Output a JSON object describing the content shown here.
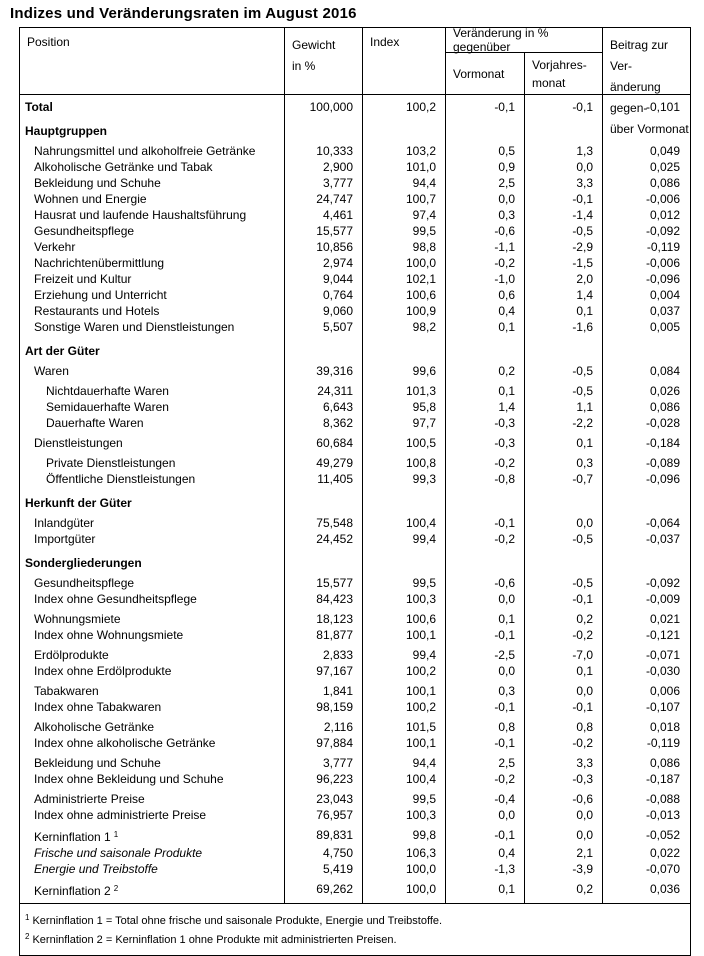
{
  "title": "Indizes und Veränderungsraten im August 2016",
  "colors": {
    "text": "#000000",
    "border": "#000000",
    "background": "#ffffff"
  },
  "table": {
    "columns": {
      "position": "Position",
      "gewicht": [
        "Gewicht",
        "in %"
      ],
      "index": "Index",
      "veraenderung_group": "Veränderung in % gegenüber",
      "vormonat": "Vormonat",
      "vorjahresmonat": [
        "Vorjahres-",
        "monat"
      ],
      "beitrag": [
        "Beitrag zur Ver-",
        "änderung gegen-",
        "über Vormonat"
      ]
    },
    "rows": [
      {
        "type": "data",
        "label": "Total",
        "indent": 0,
        "bold": true,
        "values": [
          "100,000",
          "100,2",
          "-0,1",
          "-0,1",
          "-0,101"
        ]
      },
      {
        "type": "section",
        "label": "Hauptgruppen",
        "gap": "s"
      },
      {
        "type": "data",
        "label": "Nahrungsmittel und alkoholfreie Getränke",
        "indent": 1,
        "gap": "m",
        "values": [
          "10,333",
          "103,2",
          "0,5",
          "1,3",
          "0,049"
        ]
      },
      {
        "type": "data",
        "label": "Alkoholische Getränke und Tabak",
        "indent": 1,
        "values": [
          "2,900",
          "101,0",
          "0,9",
          "0,0",
          "0,025"
        ]
      },
      {
        "type": "data",
        "label": "Bekleidung und Schuhe",
        "indent": 1,
        "values": [
          "3,777",
          "94,4",
          "2,5",
          "3,3",
          "0,086"
        ]
      },
      {
        "type": "data",
        "label": "Wohnen und Energie",
        "indent": 1,
        "values": [
          "24,747",
          "100,7",
          "0,0",
          "-0,1",
          "-0,006"
        ]
      },
      {
        "type": "data",
        "label": "Hausrat und laufende Haushaltsführung",
        "indent": 1,
        "values": [
          "4,461",
          "97,4",
          "0,3",
          "-1,4",
          "0,012"
        ]
      },
      {
        "type": "data",
        "label": "Gesundheitspflege",
        "indent": 1,
        "values": [
          "15,577",
          "99,5",
          "-0,6",
          "-0,5",
          "-0,092"
        ]
      },
      {
        "type": "data",
        "label": "Verkehr",
        "indent": 1,
        "values": [
          "10,856",
          "98,8",
          "-1,1",
          "-2,9",
          "-0,119"
        ]
      },
      {
        "type": "data",
        "label": "Nachrichtenübermittlung",
        "indent": 1,
        "values": [
          "2,974",
          "100,0",
          "-0,2",
          "-1,5",
          "-0,006"
        ]
      },
      {
        "type": "data",
        "label": "Freizeit und Kultur",
        "indent": 1,
        "values": [
          "9,044",
          "102,1",
          "-1,0",
          "2,0",
          "-0,096"
        ]
      },
      {
        "type": "data",
        "label": "Erziehung und Unterricht",
        "indent": 1,
        "values": [
          "0,764",
          "100,6",
          "0,6",
          "1,4",
          "0,004"
        ]
      },
      {
        "type": "data",
        "label": "Restaurants und Hotels",
        "indent": 1,
        "values": [
          "9,060",
          "100,9",
          "0,4",
          "0,1",
          "0,037"
        ]
      },
      {
        "type": "data",
        "label": "Sonstige Waren und Dienstleistungen",
        "indent": 1,
        "values": [
          "5,507",
          "98,2",
          "0,1",
          "-1,6",
          "0,005"
        ]
      },
      {
        "type": "section",
        "label": "Art der Güter",
        "gap": "s"
      },
      {
        "type": "data",
        "label": "Waren",
        "indent": 1,
        "gap": "m",
        "values": [
          "39,316",
          "99,6",
          "0,2",
          "-0,5",
          "0,084"
        ]
      },
      {
        "type": "data",
        "label": "Nichtdauerhafte Waren",
        "indent": 2,
        "gap": "m",
        "values": [
          "24,311",
          "101,3",
          "0,1",
          "-0,5",
          "0,026"
        ]
      },
      {
        "type": "data",
        "label": "Semidauerhafte Waren",
        "indent": 2,
        "values": [
          "6,643",
          "95,8",
          "1,4",
          "1,1",
          "0,086"
        ]
      },
      {
        "type": "data",
        "label": "Dauerhafte Waren",
        "indent": 2,
        "values": [
          "8,362",
          "97,7",
          "-0,3",
          "-2,2",
          "-0,028"
        ]
      },
      {
        "type": "data",
        "label": "Dienstleistungen",
        "indent": 1,
        "gap": "m",
        "values": [
          "60,684",
          "100,5",
          "-0,3",
          "0,1",
          "-0,184"
        ]
      },
      {
        "type": "data",
        "label": "Private Dienstleistungen",
        "indent": 2,
        "gap": "m",
        "values": [
          "49,279",
          "100,8",
          "-0,2",
          "0,3",
          "-0,089"
        ]
      },
      {
        "type": "data",
        "label": "Öffentliche Dienstleistungen",
        "indent": 2,
        "values": [
          "11,405",
          "99,3",
          "-0,8",
          "-0,7",
          "-0,096"
        ]
      },
      {
        "type": "section",
        "label": "Herkunft der Güter",
        "gap": "s"
      },
      {
        "type": "data",
        "label": "Inlandgüter",
        "indent": 1,
        "gap": "m",
        "values": [
          "75,548",
          "100,4",
          "-0,1",
          "0,0",
          "-0,064"
        ]
      },
      {
        "type": "data",
        "label": "Importgüter",
        "indent": 1,
        "values": [
          "24,452",
          "99,4",
          "-0,2",
          "-0,5",
          "-0,037"
        ]
      },
      {
        "type": "section",
        "label": "Sondergliederungen",
        "gap": "s"
      },
      {
        "type": "data",
        "label": "Gesundheitspflege",
        "indent": 1,
        "gap": "m",
        "values": [
          "15,577",
          "99,5",
          "-0,6",
          "-0,5",
          "-0,092"
        ]
      },
      {
        "type": "data",
        "label": "Index ohne Gesundheitspflege",
        "indent": 1,
        "values": [
          "84,423",
          "100,3",
          "0,0",
          "-0,1",
          "-0,009"
        ]
      },
      {
        "type": "data",
        "label": "Wohnungsmiete",
        "indent": 1,
        "gap": "m",
        "values": [
          "18,123",
          "100,6",
          "0,1",
          "0,2",
          "0,021"
        ]
      },
      {
        "type": "data",
        "label": "Index ohne Wohnungsmiete",
        "indent": 1,
        "values": [
          "81,877",
          "100,1",
          "-0,1",
          "-0,2",
          "-0,121"
        ]
      },
      {
        "type": "data",
        "label": "Erdölprodukte",
        "indent": 1,
        "gap": "m",
        "values": [
          "2,833",
          "99,4",
          "-2,5",
          "-7,0",
          "-0,071"
        ]
      },
      {
        "type": "data",
        "label": "Index ohne Erdölprodukte",
        "indent": 1,
        "values": [
          "97,167",
          "100,2",
          "0,0",
          "0,1",
          "-0,030"
        ]
      },
      {
        "type": "data",
        "label": "Tabakwaren",
        "indent": 1,
        "gap": "m",
        "values": [
          "1,841",
          "100,1",
          "0,3",
          "0,0",
          "0,006"
        ]
      },
      {
        "type": "data",
        "label": "Index ohne Tabakwaren",
        "indent": 1,
        "values": [
          "98,159",
          "100,2",
          "-0,1",
          "-0,1",
          "-0,107"
        ]
      },
      {
        "type": "data",
        "label": "Alkoholische Getränke",
        "indent": 1,
        "gap": "m",
        "values": [
          "2,116",
          "101,5",
          "0,8",
          "0,8",
          "0,018"
        ]
      },
      {
        "type": "data",
        "label": "Index ohne alkoholische Getränke",
        "indent": 1,
        "values": [
          "97,884",
          "100,1",
          "-0,1",
          "-0,2",
          "-0,119"
        ]
      },
      {
        "type": "data",
        "label": "Bekleidung und Schuhe",
        "indent": 1,
        "gap": "m",
        "values": [
          "3,777",
          "94,4",
          "2,5",
          "3,3",
          "0,086"
        ]
      },
      {
        "type": "data",
        "label": "Index ohne Bekleidung und Schuhe",
        "indent": 1,
        "values": [
          "96,223",
          "100,4",
          "-0,2",
          "-0,3",
          "-0,187"
        ]
      },
      {
        "type": "data",
        "label": "Administrierte Preise",
        "indent": 1,
        "gap": "m",
        "values": [
          "23,043",
          "99,5",
          "-0,4",
          "-0,6",
          "-0,088"
        ]
      },
      {
        "type": "data",
        "label": "Index ohne administrierte Preise",
        "indent": 1,
        "values": [
          "76,957",
          "100,3",
          "0,0",
          "0,0",
          "-0,013"
        ]
      },
      {
        "type": "data",
        "label": "Kerninflation 1",
        "sup": "1",
        "indent": 1,
        "gap": "m",
        "values": [
          "89,831",
          "99,8",
          "-0,1",
          "0,0",
          "-0,052"
        ]
      },
      {
        "type": "data",
        "label": "Frische und saisonale Produkte",
        "indent": 1,
        "italic": true,
        "values": [
          "4,750",
          "106,3",
          "0,4",
          "2,1",
          "0,022"
        ]
      },
      {
        "type": "data",
        "label": "Energie und Treibstoffe",
        "indent": 1,
        "italic": true,
        "values": [
          "5,419",
          "100,0",
          "-1,3",
          "-3,9",
          "-0,070"
        ]
      },
      {
        "type": "data",
        "label": "Kerninflation 2",
        "sup": "2",
        "indent": 1,
        "gap": "m",
        "values": [
          "69,262",
          "100,0",
          "0,1",
          "0,2",
          "0,036"
        ]
      }
    ],
    "footnotes": [
      {
        "sup": "1",
        "text": "Kerninflation 1 = Total ohne frische und saisonale Produkte, Energie und Treibstoffe."
      },
      {
        "sup": "2",
        "text": "Kerninflation 2 = Kerninflation 1 ohne Produkte mit administrierten Preisen."
      }
    ]
  }
}
